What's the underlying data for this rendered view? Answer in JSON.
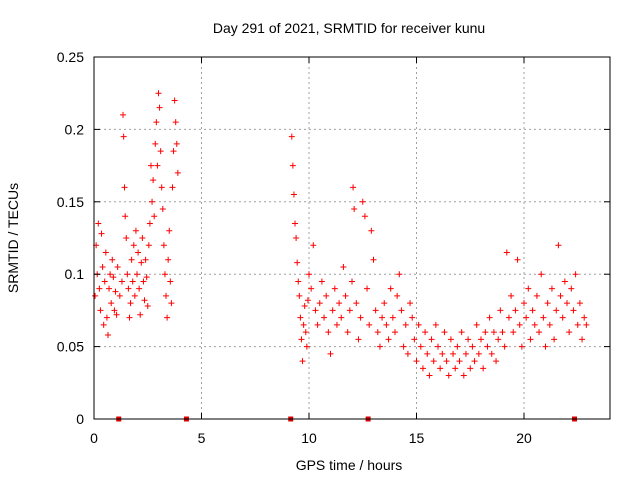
{
  "chart_data": {
    "type": "scatter",
    "title": "Day 291 of 2021, SRMTID for receiver kunu",
    "xlabel": "GPS time / hours",
    "ylabel": "SRMTID / TECUs",
    "xlim": [
      0,
      24
    ],
    "ylim": [
      0,
      0.25
    ],
    "xticks": [
      0,
      5,
      10,
      15,
      20
    ],
    "xtick_labels": [
      "0",
      "5",
      "10",
      "15",
      "20"
    ],
    "yticks": [
      0,
      0.05,
      0.1,
      0.15,
      0.2,
      0.25
    ],
    "ytick_labels": [
      "0",
      "0.05",
      "0.1",
      "0.15",
      "0.2",
      "0.25"
    ],
    "grid": true,
    "marker": "+",
    "color": "#ff0000",
    "gap_marks_x": [
      1.15,
      4.3,
      9.15,
      12.75,
      22.35
    ],
    "series": [
      {
        "name": "SRMTID",
        "points": [
          [
            0.05,
            0.085
          ],
          [
            0.1,
            0.12
          ],
          [
            0.15,
            0.1
          ],
          [
            0.2,
            0.135
          ],
          [
            0.25,
            0.09
          ],
          [
            0.3,
            0.075
          ],
          [
            0.35,
            0.128
          ],
          [
            0.4,
            0.105
          ],
          [
            0.45,
            0.065
          ],
          [
            0.5,
            0.095
          ],
          [
            0.55,
            0.115
          ],
          [
            0.6,
            0.07
          ],
          [
            0.65,
            0.058
          ],
          [
            0.7,
            0.09
          ],
          [
            0.75,
            0.1
          ],
          [
            0.8,
            0.08
          ],
          [
            0.85,
            0.11
          ],
          [
            0.9,
            0.098
          ],
          [
            0.95,
            0.075
          ],
          [
            1.0,
            0.088
          ],
          [
            1.05,
            0.072
          ],
          [
            1.1,
            0.105
          ],
          [
            1.2,
            0.085
          ],
          [
            1.3,
            0.095
          ],
          [
            1.35,
            0.21
          ],
          [
            1.38,
            0.195
          ],
          [
            1.42,
            0.16
          ],
          [
            1.45,
            0.14
          ],
          [
            1.5,
            0.125
          ],
          [
            1.55,
            0.1
          ],
          [
            1.6,
            0.09
          ],
          [
            1.65,
            0.07
          ],
          [
            1.7,
            0.08
          ],
          [
            1.75,
            0.11
          ],
          [
            1.8,
            0.095
          ],
          [
            1.85,
            0.12
          ],
          [
            1.9,
            0.085
          ],
          [
            1.95,
            0.13
          ],
          [
            2.0,
            0.1
          ],
          [
            2.05,
            0.115
          ],
          [
            2.1,
            0.09
          ],
          [
            2.15,
            0.072
          ],
          [
            2.2,
            0.108
          ],
          [
            2.25,
            0.125
          ],
          [
            2.3,
            0.095
          ],
          [
            2.35,
            0.082
          ],
          [
            2.4,
            0.11
          ],
          [
            2.45,
            0.098
          ],
          [
            2.5,
            0.078
          ],
          [
            2.55,
            0.12
          ],
          [
            2.6,
            0.135
          ],
          [
            2.65,
            0.175
          ],
          [
            2.7,
            0.15
          ],
          [
            2.75,
            0.165
          ],
          [
            2.8,
            0.14
          ],
          [
            2.85,
            0.19
          ],
          [
            2.9,
            0.205
          ],
          [
            2.95,
            0.175
          ],
          [
            3.0,
            0.225
          ],
          [
            3.05,
            0.215
          ],
          [
            3.1,
            0.185
          ],
          [
            3.15,
            0.16
          ],
          [
            3.2,
            0.145
          ],
          [
            3.25,
            0.12
          ],
          [
            3.3,
            0.1
          ],
          [
            3.35,
            0.085
          ],
          [
            3.4,
            0.07
          ],
          [
            3.45,
            0.11
          ],
          [
            3.5,
            0.13
          ],
          [
            3.55,
            0.095
          ],
          [
            3.6,
            0.08
          ],
          [
            3.65,
            0.16
          ],
          [
            3.7,
            0.185
          ],
          [
            3.75,
            0.22
          ],
          [
            3.8,
            0.205
          ],
          [
            3.85,
            0.19
          ],
          [
            3.9,
            0.17
          ],
          [
            9.2,
            0.195
          ],
          [
            9.25,
            0.175
          ],
          [
            9.3,
            0.155
          ],
          [
            9.35,
            0.135
          ],
          [
            9.4,
            0.125
          ],
          [
            9.45,
            0.108
          ],
          [
            9.5,
            0.095
          ],
          [
            9.55,
            0.085
          ],
          [
            9.6,
            0.07
          ],
          [
            9.65,
            0.055
          ],
          [
            9.7,
            0.04
          ],
          [
            9.75,
            0.065
          ],
          [
            9.8,
            0.078
          ],
          [
            9.85,
            0.06
          ],
          [
            9.9,
            0.05
          ],
          [
            9.95,
            0.082
          ],
          [
            10.0,
            0.1
          ],
          [
            10.1,
            0.09
          ],
          [
            10.2,
            0.12
          ],
          [
            10.3,
            0.075
          ],
          [
            10.4,
            0.065
          ],
          [
            10.5,
            0.08
          ],
          [
            10.6,
            0.095
          ],
          [
            10.7,
            0.07
          ],
          [
            10.8,
            0.085
          ],
          [
            10.9,
            0.06
          ],
          [
            11.0,
            0.045
          ],
          [
            11.1,
            0.075
          ],
          [
            11.2,
            0.09
          ],
          [
            11.3,
            0.065
          ],
          [
            11.4,
            0.08
          ],
          [
            11.5,
            0.07
          ],
          [
            11.6,
            0.105
          ],
          [
            11.7,
            0.085
          ],
          [
            11.8,
            0.06
          ],
          [
            11.9,
            0.075
          ],
          [
            12.0,
            0.095
          ],
          [
            12.05,
            0.16
          ],
          [
            12.1,
            0.145
          ],
          [
            12.2,
            0.08
          ],
          [
            12.3,
            0.055
          ],
          [
            12.4,
            0.07
          ],
          [
            12.5,
            0.15
          ],
          [
            12.6,
            0.14
          ],
          [
            12.7,
            0.09
          ],
          [
            12.8,
            0.065
          ],
          [
            12.9,
            0.13
          ],
          [
            13.0,
            0.11
          ],
          [
            13.1,
            0.075
          ],
          [
            13.2,
            0.06
          ],
          [
            13.3,
            0.05
          ],
          [
            13.4,
            0.07
          ],
          [
            13.5,
            0.08
          ],
          [
            13.6,
            0.065
          ],
          [
            13.7,
            0.055
          ],
          [
            13.8,
            0.09
          ],
          [
            13.9,
            0.07
          ],
          [
            14.0,
            0.06
          ],
          [
            14.1,
            0.085
          ],
          [
            14.2,
            0.1
          ],
          [
            14.3,
            0.075
          ],
          [
            14.4,
            0.05
          ],
          [
            14.5,
            0.065
          ],
          [
            14.6,
            0.045
          ],
          [
            14.7,
            0.08
          ],
          [
            14.8,
            0.07
          ],
          [
            14.9,
            0.055
          ],
          [
            15.0,
            0.04
          ],
          [
            15.1,
            0.065
          ],
          [
            15.2,
            0.05
          ],
          [
            15.3,
            0.035
          ],
          [
            15.4,
            0.06
          ],
          [
            15.5,
            0.045
          ],
          [
            15.6,
            0.03
          ],
          [
            15.7,
            0.055
          ],
          [
            15.8,
            0.04
          ],
          [
            15.9,
            0.065
          ],
          [
            16.0,
            0.05
          ],
          [
            16.1,
            0.035
          ],
          [
            16.2,
            0.045
          ],
          [
            16.3,
            0.06
          ],
          [
            16.4,
            0.04
          ],
          [
            16.5,
            0.03
          ],
          [
            16.6,
            0.055
          ],
          [
            16.7,
            0.045
          ],
          [
            16.8,
            0.035
          ],
          [
            16.9,
            0.05
          ],
          [
            17.0,
            0.04
          ],
          [
            17.1,
            0.06
          ],
          [
            17.2,
            0.03
          ],
          [
            17.3,
            0.045
          ],
          [
            17.4,
            0.055
          ],
          [
            17.5,
            0.035
          ],
          [
            17.6,
            0.05
          ],
          [
            17.7,
            0.04
          ],
          [
            17.8,
            0.065
          ],
          [
            17.9,
            0.045
          ],
          [
            18.0,
            0.055
          ],
          [
            18.1,
            0.035
          ],
          [
            18.2,
            0.06
          ],
          [
            18.3,
            0.05
          ],
          [
            18.4,
            0.07
          ],
          [
            18.5,
            0.045
          ],
          [
            18.6,
            0.06
          ],
          [
            18.7,
            0.04
          ],
          [
            18.8,
            0.055
          ],
          [
            18.9,
            0.075
          ],
          [
            19.0,
            0.06
          ],
          [
            19.1,
            0.05
          ],
          [
            19.2,
            0.115
          ],
          [
            19.3,
            0.07
          ],
          [
            19.4,
            0.085
          ],
          [
            19.5,
            0.06
          ],
          [
            19.6,
            0.075
          ],
          [
            19.7,
            0.11
          ],
          [
            19.8,
            0.065
          ],
          [
            19.9,
            0.05
          ],
          [
            20.0,
            0.08
          ],
          [
            20.1,
            0.07
          ],
          [
            20.2,
            0.09
          ],
          [
            20.3,
            0.055
          ],
          [
            20.4,
            0.075
          ],
          [
            20.5,
            0.065
          ],
          [
            20.6,
            0.085
          ],
          [
            20.7,
            0.06
          ],
          [
            20.8,
            0.1
          ],
          [
            20.9,
            0.07
          ],
          [
            21.0,
            0.05
          ],
          [
            21.1,
            0.08
          ],
          [
            21.2,
            0.065
          ],
          [
            21.3,
            0.09
          ],
          [
            21.4,
            0.055
          ],
          [
            21.5,
            0.075
          ],
          [
            21.6,
            0.12
          ],
          [
            21.7,
            0.085
          ],
          [
            21.8,
            0.07
          ],
          [
            21.9,
            0.095
          ],
          [
            22.0,
            0.08
          ],
          [
            22.1,
            0.06
          ],
          [
            22.2,
            0.09
          ],
          [
            22.3,
            0.075
          ],
          [
            22.4,
            0.1
          ],
          [
            22.5,
            0.065
          ],
          [
            22.6,
            0.08
          ],
          [
            22.7,
            0.055
          ],
          [
            22.8,
            0.07
          ],
          [
            22.9,
            0.065
          ]
        ]
      }
    ]
  }
}
